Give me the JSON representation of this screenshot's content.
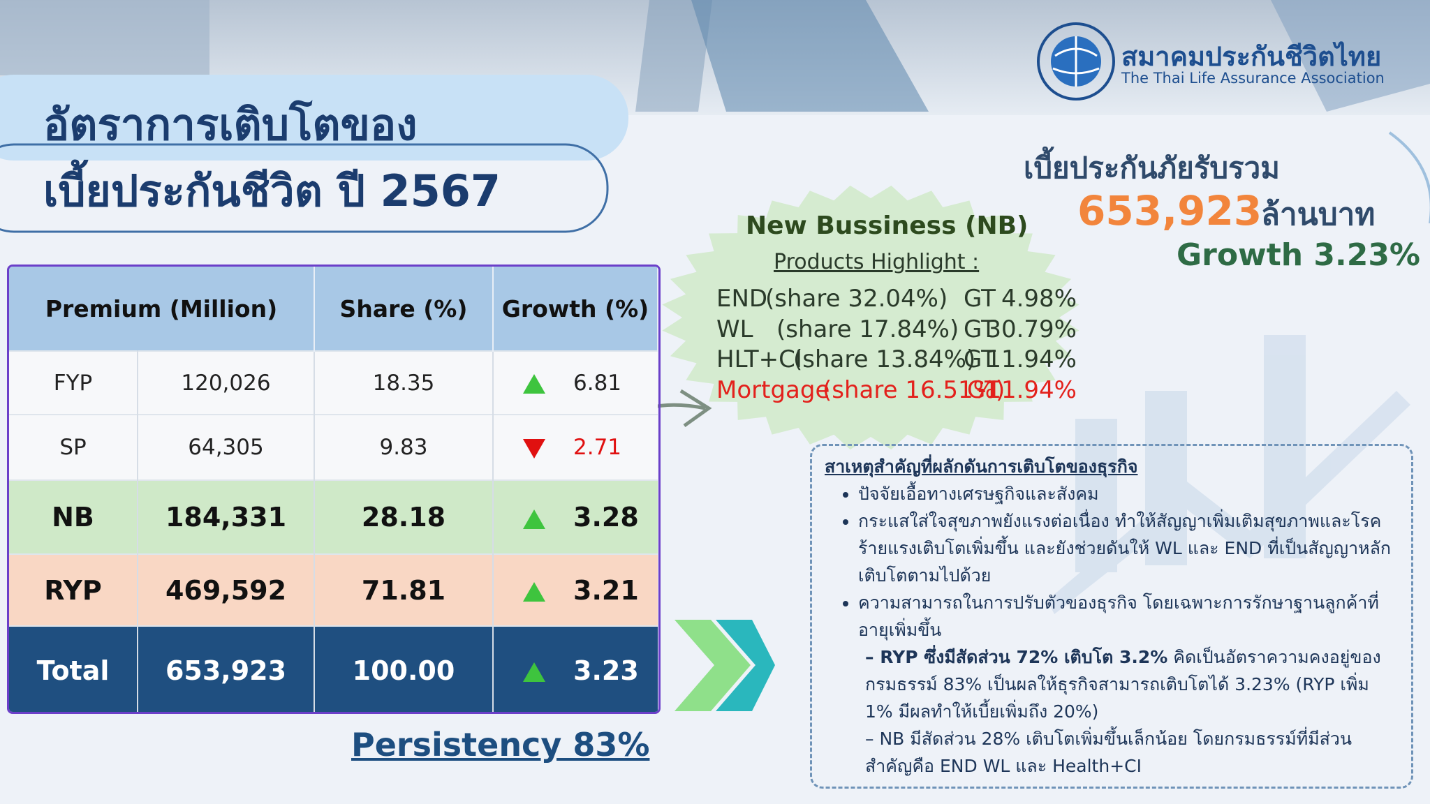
{
  "header": {
    "title_line1": "อัตราการเติบโตของ",
    "title_line2": "เบี้ยประกันชีวิต ปี 2567"
  },
  "logo": {
    "name_th": "สมาคมประกันชีวิตไทย",
    "name_en": "The Thai Life Assurance Association"
  },
  "table": {
    "columns": [
      "Premium  (Million)",
      "Share (%)",
      "Growth (%)"
    ],
    "rows": [
      {
        "label": "FYP",
        "premium": "120,026",
        "share": "18.35",
        "growth": "6.81",
        "trend": "up",
        "bold": false,
        "color": "#f7f8fa",
        "text_color": "#222222"
      },
      {
        "label": "SP",
        "premium": "64,305",
        "share": "9.83",
        "growth": "2.71",
        "trend": "down",
        "bold": false,
        "color": "#f7f8fa",
        "text_color": "#222222"
      },
      {
        "label": "NB",
        "premium": "184,331",
        "share": "28.18",
        "growth": "3.28",
        "trend": "up",
        "bold": true,
        "color": "#cfe9c8",
        "text_color": "#111111"
      },
      {
        "label": "RYP",
        "premium": "469,592",
        "share": "71.81",
        "growth": "3.21",
        "trend": "up",
        "bold": true,
        "color": "#f9d7c4",
        "text_color": "#111111"
      },
      {
        "label": "Total",
        "premium": "653,923",
        "share": "100.00",
        "growth": "3.23",
        "trend": "up",
        "bold": true,
        "color": "#1f4f80",
        "text_color": "#ffffff"
      }
    ]
  },
  "persistency": "Persistency 83%",
  "summary": {
    "label": "เบี้ยประกันภัยรับรวม",
    "amount": "653,923",
    "unit": "ล้านบาท",
    "growth": "Growth 3.23%"
  },
  "new_business": {
    "title": "New Bussiness  (NB)",
    "subtitle": "Products Highlight :",
    "items": [
      {
        "product": "END",
        "share": "(share   32.04%)",
        "gt_label": "GT",
        "gt": "4.98%",
        "color": "#2a3a2a"
      },
      {
        "product": "WL",
        "share": "(share   17.84%)",
        "gt_label": "GT",
        "gt": "30.79%",
        "color": "#2a3a2a"
      },
      {
        "product": "HLT+CI",
        "share": "(share  13.84%)",
        "gt_label": "GT",
        "gt": "11.94%",
        "color": "#2a3a2a"
      },
      {
        "product": "Mortgage",
        "share": "(share 16.51%)",
        "gt_label": "GT",
        "gt": "-11.94%",
        "color": "#e3211c"
      }
    ]
  },
  "factors": {
    "title": "สาเหตุสำคัญที่ผลักดันการเติบโตของธุรกิจ",
    "bullets": [
      "ปัจจัยเอื้อทางเศรษฐกิจและสังคม",
      "กระแสใส่ใจสุขภาพยังแรงต่อเนื่อง ทำให้สัญญาเพิ่มเติมสุขภาพและโรคร้ายแรงเติบโตเพิ่มขึ้น และยังช่วยดันให้ WL และ END ที่เป็นสัญญาหลักเติบโตตามไปด้วย",
      "ความสามารถในการปรับตัวของธุรกิจ โดยเฉพาะการรักษาฐานลูกค้าที่อายุเพิ่มขึ้น"
    ],
    "notes": [
      {
        "bold": "– RYP ซึ่งมีสัดส่วน 72% เติบโต 3.2%",
        "text": " คิดเป็นอัตราความคงอยู่ของกรมธรรม์ 83% เป็นผลให้ธุรกิจสามารถเติบโตได้ 3.23% (RYP เพิ่ม 1% มีผลทำให้เบี้ยเพิ่มถึง 20%)"
      },
      {
        "bold": "",
        "text": "– NB มีสัดส่วน 28% เติบโตเพิ่มขึ้นเล็กน้อย โดยกรมธรรม์ที่มีส่วนสำคัญคือ END WL และ Health+CI"
      }
    ]
  }
}
